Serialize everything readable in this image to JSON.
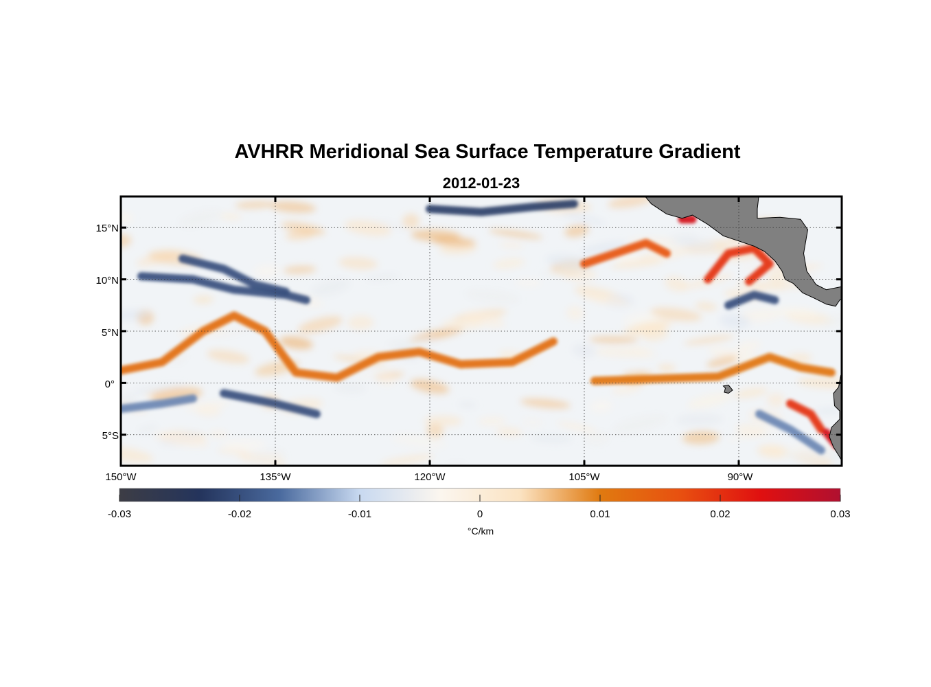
{
  "title": "AVHRR Meridional Sea Surface Temperature Gradient",
  "subtitle": "2012-01-23",
  "colorbar": {
    "min": -0.03,
    "max": 0.03,
    "tick_labels": [
      "-0.03",
      "-0.02",
      "-0.01",
      "0",
      "0.01",
      "0.02",
      "0.03"
    ],
    "unit": "°C/km",
    "colors": [
      "#3d3d45",
      "#24345c",
      "#4a6a9e",
      "#c8d9f0",
      "#fbf6ef",
      "#fbe3c2",
      "#e07a10",
      "#e85010",
      "#e01010",
      "#b01030"
    ]
  },
  "map": {
    "lon_range": [
      -150,
      -80
    ],
    "lat_range": [
      -8,
      18
    ],
    "lon_ticks": [
      -150,
      -135,
      -120,
      -105,
      -90
    ],
    "lat_ticks": [
      15,
      10,
      5,
      0,
      -5
    ],
    "lon_tick_labels": [
      "150°W",
      "135°W",
      "120°W",
      "105°W",
      "90°W"
    ],
    "lat_tick_labels": [
      "15°N",
      "10°N",
      "5°N",
      "0°",
      "5°S"
    ],
    "grid": true,
    "land_color": "#808080"
  },
  "chart_data": {
    "type": "heatmap",
    "title": "AVHRR Meridional Sea Surface Temperature Gradient",
    "subtitle": "2012-01-23",
    "xlabel": "",
    "ylabel": "",
    "xlim": [
      -150,
      -80
    ],
    "ylim": [
      -8,
      18
    ],
    "zlim": [
      -0.03,
      0.03
    ],
    "z_unit": "°C/km",
    "features": [
      {
        "kind": "positive-band",
        "value": 0.012,
        "path": [
          [
            -150,
            1.2
          ],
          [
            -146,
            2.0
          ],
          [
            -142,
            5.0
          ],
          [
            -139,
            6.5
          ],
          [
            -136,
            5.0
          ],
          [
            -133,
            1.0
          ],
          [
            -129,
            0.5
          ],
          [
            -125,
            2.5
          ],
          [
            -121,
            3.0
          ],
          [
            -117,
            1.8
          ],
          [
            -112,
            2.0
          ],
          [
            -108,
            4.0
          ]
        ]
      },
      {
        "kind": "positive-band",
        "value": 0.011,
        "path": [
          [
            -104,
            0.2
          ],
          [
            -98,
            0.4
          ],
          [
            -92,
            0.6
          ],
          [
            -87,
            2.5
          ],
          [
            -84,
            1.5
          ],
          [
            -81,
            1.0
          ]
        ]
      },
      {
        "kind": "positive-band",
        "value": 0.016,
        "path": [
          [
            -105,
            11.5
          ],
          [
            -102,
            12.5
          ],
          [
            -99,
            13.5
          ],
          [
            -97,
            12.5
          ]
        ]
      },
      {
        "kind": "positive-band",
        "value": 0.02,
        "path": [
          [
            -93,
            10.0
          ],
          [
            -91,
            12.5
          ],
          [
            -88.5,
            13.0
          ],
          [
            -87,
            11.5
          ],
          [
            -89,
            9.8
          ]
        ]
      },
      {
        "kind": "positive-band",
        "value": 0.02,
        "path": [
          [
            -85,
            -2.0
          ],
          [
            -83,
            -3.0
          ],
          [
            -82,
            -4.5
          ]
        ]
      },
      {
        "kind": "positive-band",
        "value": 0.025,
        "path": [
          [
            -95.5,
            15.8
          ],
          [
            -94.5,
            15.8
          ]
        ]
      },
      {
        "kind": "positive-band",
        "value": 0.025,
        "path": [
          [
            -81.5,
            -4.8
          ],
          [
            -80.5,
            -6.0
          ]
        ]
      },
      {
        "kind": "negative-band",
        "value": -0.02,
        "path": [
          [
            -148,
            10.3
          ],
          [
            -143,
            10.0
          ],
          [
            -139,
            9.0
          ],
          [
            -134,
            8.5
          ],
          [
            -132,
            8.0
          ]
        ]
      },
      {
        "kind": "negative-band",
        "value": -0.02,
        "path": [
          [
            -144,
            12.0
          ],
          [
            -140,
            11.0
          ],
          [
            -137,
            9.5
          ],
          [
            -134,
            8.8
          ]
        ]
      },
      {
        "kind": "negative-band",
        "value": -0.02,
        "path": [
          [
            -140,
            -1.0
          ],
          [
            -135,
            -2.0
          ],
          [
            -131,
            -3.0
          ]
        ]
      },
      {
        "kind": "negative-band",
        "value": -0.022,
        "path": [
          [
            -120,
            16.8
          ],
          [
            -115,
            16.5
          ],
          [
            -110,
            17.0
          ],
          [
            -106,
            17.3
          ]
        ]
      },
      {
        "kind": "negative-band",
        "value": -0.02,
        "path": [
          [
            -91,
            7.5
          ],
          [
            -88.5,
            8.5
          ],
          [
            -86.5,
            8.0
          ]
        ]
      },
      {
        "kind": "negative-band",
        "value": -0.015,
        "path": [
          [
            -88,
            -3.0
          ],
          [
            -85,
            -4.5
          ],
          [
            -82,
            -6.5
          ]
        ]
      },
      {
        "kind": "negative-band",
        "value": -0.015,
        "path": [
          [
            -150,
            -2.5
          ],
          [
            -146,
            -2.0
          ],
          [
            -143,
            -1.5
          ]
        ]
      }
    ],
    "land": [
      "Central America (Mexico–Panama)",
      "South America (Ecuador/Peru)",
      "Galápagos Islands"
    ]
  }
}
